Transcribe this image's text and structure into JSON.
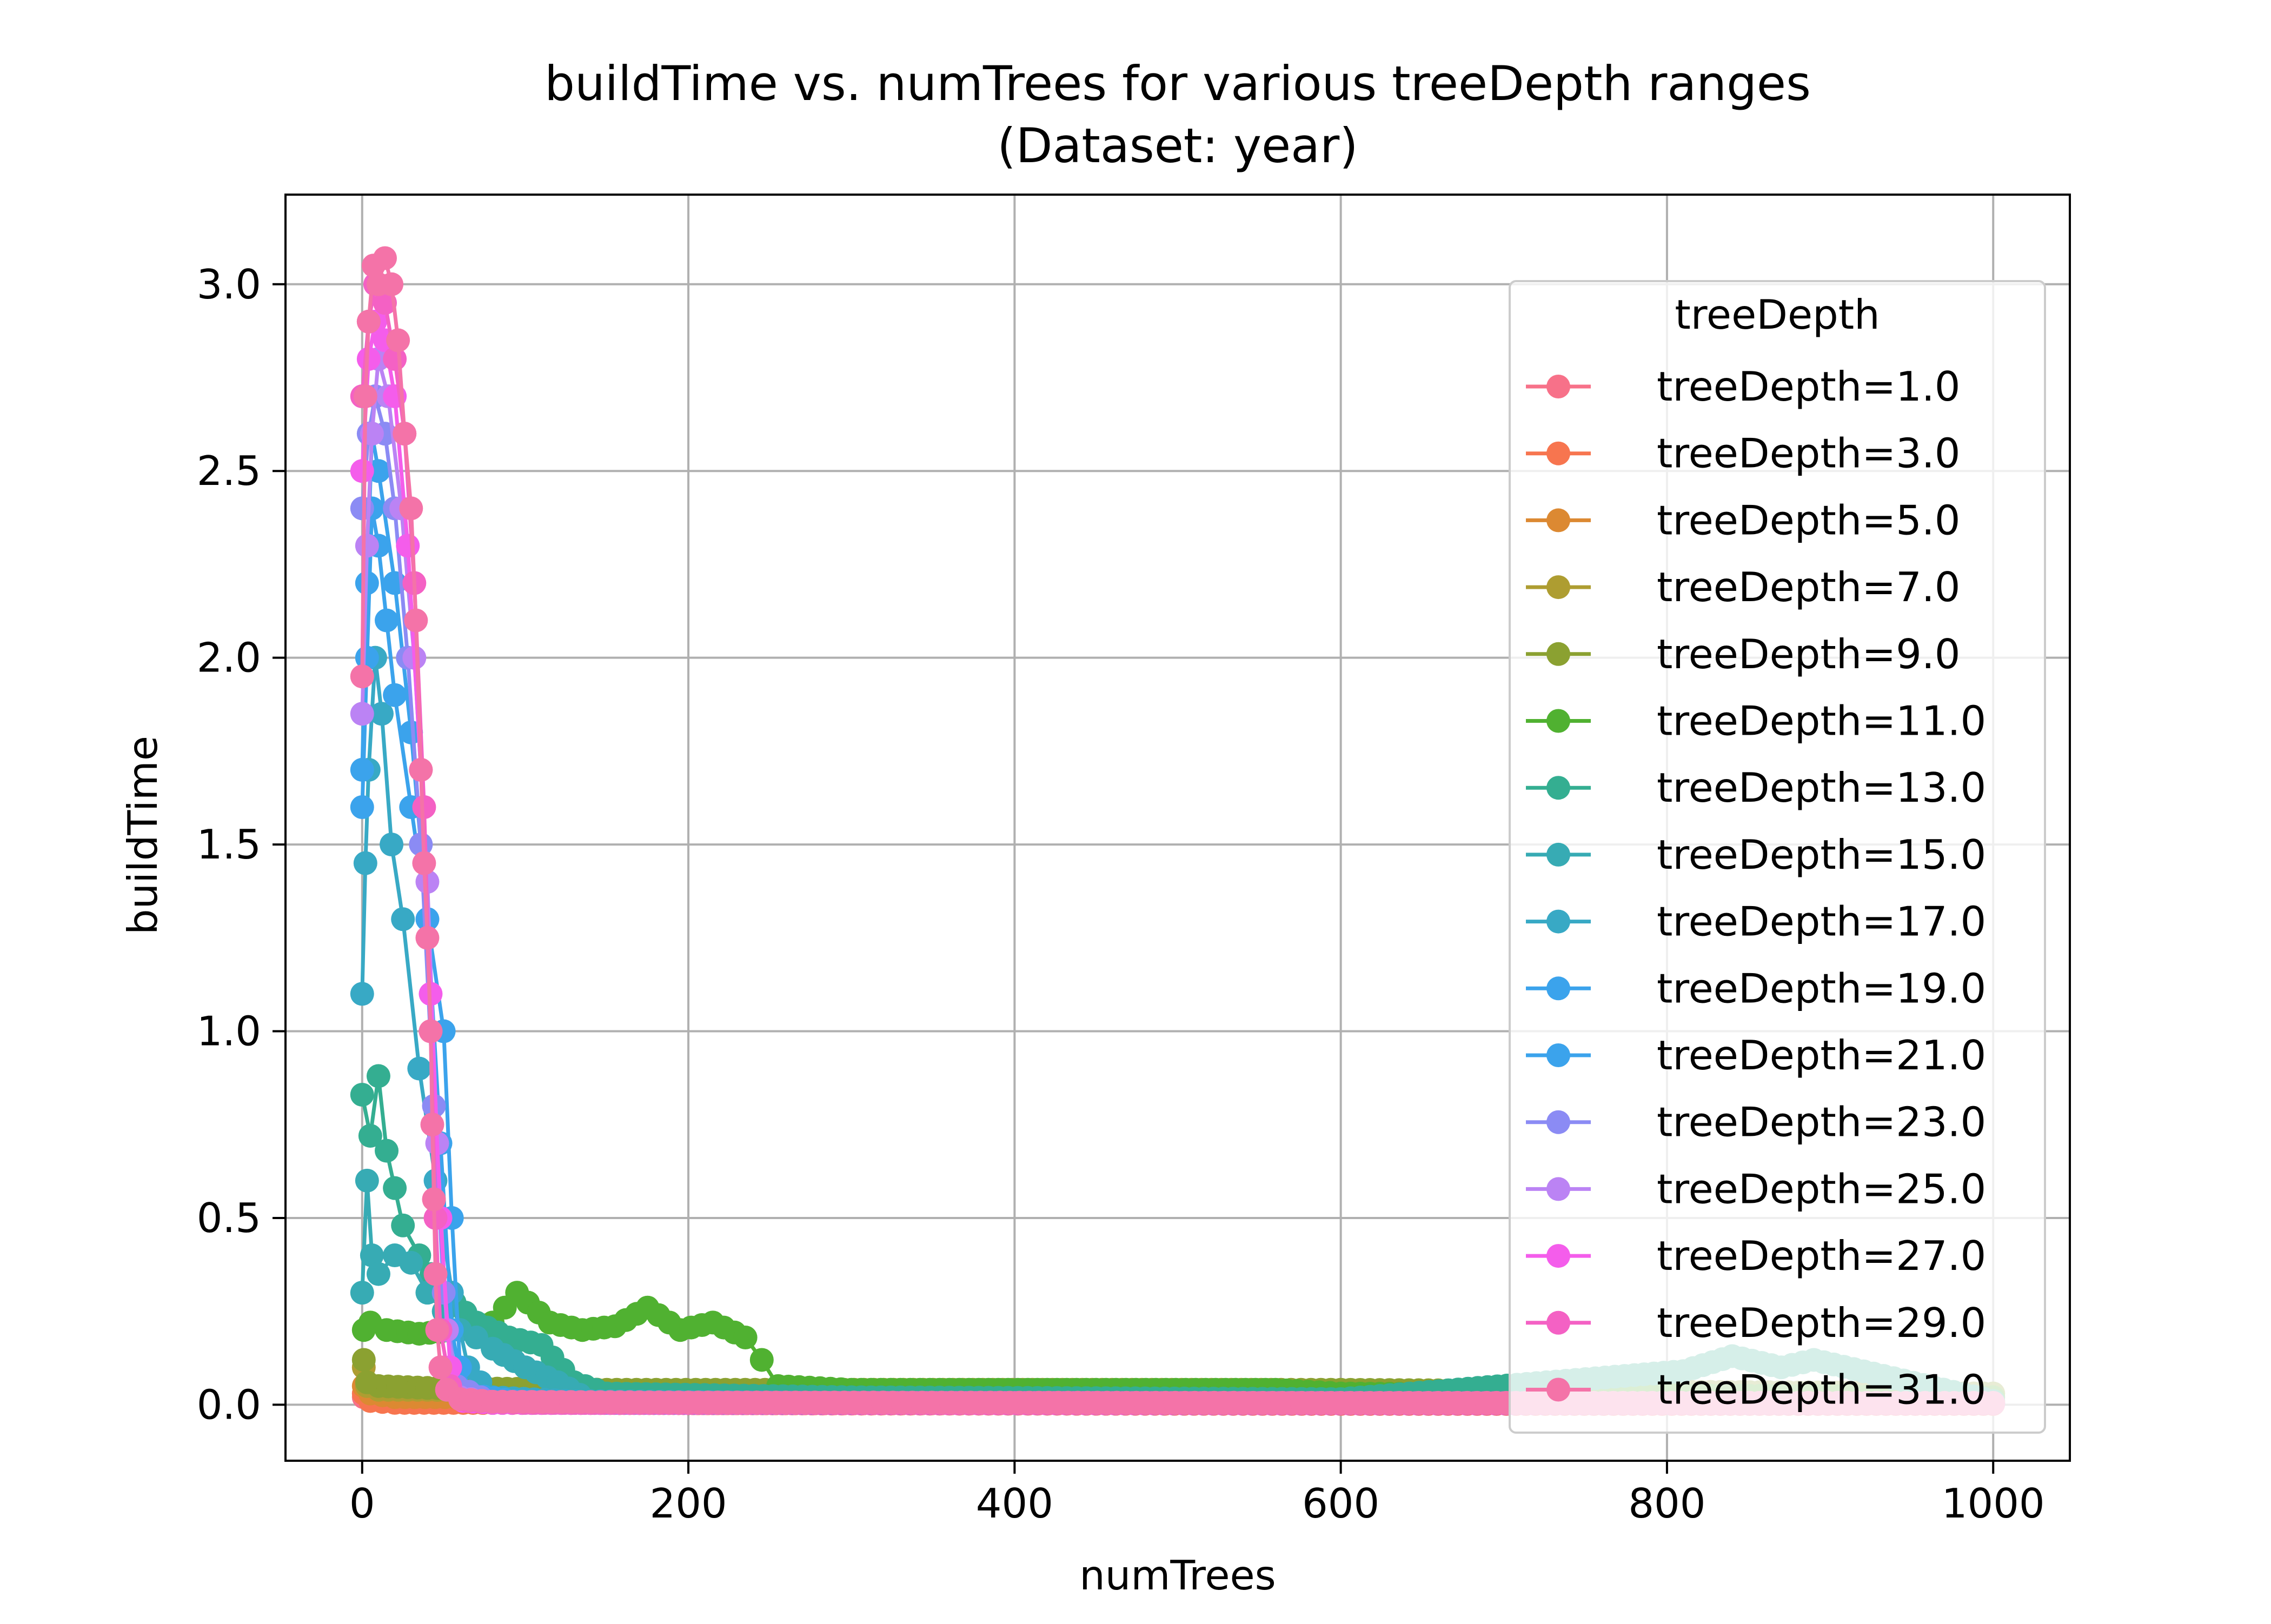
{
  "chart_data": {
    "type": "line",
    "title": "buildTime vs. numTrees for various treeDepth ranges",
    "subtitle": "(Dataset: year)",
    "xlabel": "numTrees",
    "ylabel": "buildTime",
    "xlim": [
      -47,
      1047
    ],
    "ylim": [
      -0.15,
      3.24
    ],
    "xticks": [
      0,
      200,
      400,
      600,
      800,
      1000
    ],
    "xtick_labels": [
      "0",
      "200",
      "400",
      "600",
      "800",
      "1000"
    ],
    "yticks": [
      0.0,
      0.5,
      1.0,
      1.5,
      2.0,
      2.5,
      3.0
    ],
    "ytick_labels": [
      "0.0",
      "0.5",
      "1.0",
      "1.5",
      "2.0",
      "2.5",
      "3.0"
    ],
    "grid": true,
    "legend": {
      "title": "treeDepth",
      "placement": "upper right"
    },
    "series": [
      {
        "name": "treeDepth=1.0",
        "color": "#f77189",
        "points": [
          [
            1,
            0.02
          ],
          [
            100,
            0.005
          ],
          [
            300,
            0.003
          ],
          [
            600,
            0.002
          ],
          [
            1000,
            0.002
          ]
        ]
      },
      {
        "name": "treeDepth=3.0",
        "color": "#f7754f",
        "points": [
          [
            1,
            0.03
          ],
          [
            5,
            0.01
          ],
          [
            20,
            0.005
          ],
          [
            200,
            0.004
          ],
          [
            600,
            0.003
          ],
          [
            1000,
            0.003
          ]
        ]
      },
      {
        "name": "treeDepth=5.0",
        "color": "#dc8932",
        "points": [
          [
            1,
            0.05
          ],
          [
            5,
            0.03
          ],
          [
            20,
            0.02
          ],
          [
            100,
            0.02
          ],
          [
            300,
            0.015
          ],
          [
            600,
            0.01
          ],
          [
            1000,
            0.01
          ]
        ]
      },
      {
        "name": "treeDepth=7.0",
        "color": "#ae9d31",
        "points": [
          [
            1,
            0.1
          ],
          [
            3,
            0.05
          ],
          [
            10,
            0.04
          ],
          [
            40,
            0.04
          ],
          [
            100,
            0.035
          ],
          [
            300,
            0.03
          ],
          [
            600,
            0.03
          ],
          [
            1000,
            0.03
          ]
        ]
      },
      {
        "name": "treeDepth=9.0",
        "color": "#8ba131",
        "points": [
          [
            1,
            0.12
          ],
          [
            3,
            0.06
          ],
          [
            10,
            0.05
          ],
          [
            40,
            0.045
          ],
          [
            150,
            0.04
          ],
          [
            350,
            0.04
          ],
          [
            600,
            0.04
          ],
          [
            1000,
            0.03
          ]
        ]
      },
      {
        "name": "treeDepth=11.0",
        "color": "#50b131",
        "points": [
          [
            1,
            0.2
          ],
          [
            5,
            0.22
          ],
          [
            15,
            0.2
          ],
          [
            35,
            0.19
          ],
          [
            60,
            0.2
          ],
          [
            80,
            0.22
          ],
          [
            95,
            0.3
          ],
          [
            115,
            0.22
          ],
          [
            135,
            0.2
          ],
          [
            155,
            0.21
          ],
          [
            175,
            0.26
          ],
          [
            195,
            0.2
          ],
          [
            215,
            0.22
          ],
          [
            235,
            0.18
          ],
          [
            245,
            0.12
          ],
          [
            255,
            0.05
          ],
          [
            300,
            0.04
          ],
          [
            450,
            0.04
          ],
          [
            560,
            0.04
          ],
          [
            600,
            0.03
          ],
          [
            1000,
            0.02
          ]
        ]
      },
      {
        "name": "treeDepth=13.0",
        "color": "#34ae91",
        "points": [
          [
            0,
            0.83
          ],
          [
            5,
            0.72
          ],
          [
            10,
            0.88
          ],
          [
            15,
            0.68
          ],
          [
            20,
            0.58
          ],
          [
            25,
            0.48
          ],
          [
            35,
            0.4
          ],
          [
            50,
            0.3
          ],
          [
            70,
            0.22
          ],
          [
            90,
            0.18
          ],
          [
            110,
            0.16
          ],
          [
            130,
            0.06
          ],
          [
            150,
            0.03
          ],
          [
            300,
            0.02
          ],
          [
            600,
            0.015
          ],
          [
            810,
            0.09
          ],
          [
            840,
            0.13
          ],
          [
            870,
            0.1
          ],
          [
            890,
            0.12
          ],
          [
            1000,
            0.01
          ]
        ]
      },
      {
        "name": "treeDepth=15.0",
        "color": "#37abb4",
        "points": [
          [
            0,
            0.3
          ],
          [
            3,
            0.6
          ],
          [
            6,
            0.4
          ],
          [
            10,
            0.35
          ],
          [
            20,
            0.4
          ],
          [
            30,
            0.38
          ],
          [
            40,
            0.3
          ],
          [
            50,
            0.25
          ],
          [
            60,
            0.2
          ],
          [
            70,
            0.18
          ],
          [
            80,
            0.15
          ],
          [
            100,
            0.1
          ],
          [
            120,
            0.06
          ],
          [
            140,
            0.01
          ],
          [
            300,
            0.005
          ],
          [
            1000,
            0.004
          ]
        ]
      },
      {
        "name": "treeDepth=17.0",
        "color": "#38a9c5",
        "points": [
          [
            0,
            1.1
          ],
          [
            2,
            1.45
          ],
          [
            4,
            1.7
          ],
          [
            8,
            2.0
          ],
          [
            12,
            1.85
          ],
          [
            18,
            1.5
          ],
          [
            25,
            1.3
          ],
          [
            35,
            0.9
          ],
          [
            45,
            0.6
          ],
          [
            55,
            0.3
          ],
          [
            65,
            0.1
          ],
          [
            80,
            0.02
          ],
          [
            150,
            0.005
          ],
          [
            1000,
            0.004
          ]
        ]
      },
      {
        "name": "treeDepth=19.0",
        "color": "#3ba3ec",
        "points": [
          [
            0,
            1.6
          ],
          [
            3,
            2.0
          ],
          [
            6,
            2.4
          ],
          [
            10,
            2.3
          ],
          [
            15,
            2.1
          ],
          [
            20,
            1.9
          ],
          [
            30,
            1.6
          ],
          [
            40,
            1.3
          ],
          [
            50,
            1.0
          ],
          [
            55,
            0.5
          ],
          [
            60,
            0.1
          ],
          [
            70,
            0.01
          ],
          [
            150,
            0.005
          ],
          [
            1000,
            0.004
          ]
        ]
      },
      {
        "name": "treeDepth=21.0",
        "color": "#3ba3ec",
        "points": [
          [
            0,
            1.7
          ],
          [
            3,
            2.2
          ],
          [
            6,
            2.6
          ],
          [
            10,
            2.5
          ],
          [
            20,
            2.2
          ],
          [
            30,
            1.8
          ],
          [
            40,
            1.3
          ],
          [
            48,
            0.7
          ],
          [
            55,
            0.2
          ],
          [
            62,
            0.03
          ],
          [
            100,
            0.005
          ],
          [
            1000,
            0.004
          ]
        ]
      },
      {
        "name": "treeDepth=23.0",
        "color": "#8b8bf4",
        "points": [
          [
            0,
            2.4
          ],
          [
            4,
            2.6
          ],
          [
            8,
            2.7
          ],
          [
            14,
            2.6
          ],
          [
            20,
            2.4
          ],
          [
            28,
            2.0
          ],
          [
            36,
            1.5
          ],
          [
            44,
            0.8
          ],
          [
            50,
            0.3
          ],
          [
            58,
            0.05
          ],
          [
            80,
            0.005
          ],
          [
            1000,
            0.004
          ]
        ]
      },
      {
        "name": "treeDepth=25.0",
        "color": "#bb83f4",
        "points": [
          [
            0,
            1.85
          ],
          [
            3,
            2.3
          ],
          [
            6,
            2.6
          ],
          [
            10,
            2.8
          ],
          [
            16,
            2.7
          ],
          [
            24,
            2.4
          ],
          [
            32,
            2.0
          ],
          [
            40,
            1.4
          ],
          [
            46,
            0.7
          ],
          [
            52,
            0.2
          ],
          [
            60,
            0.02
          ],
          [
            80,
            0.005
          ],
          [
            1000,
            0.004
          ]
        ]
      },
      {
        "name": "treeDepth=27.0",
        "color": "#f45deb",
        "points": [
          [
            0,
            2.5
          ],
          [
            4,
            2.8
          ],
          [
            8,
            2.9
          ],
          [
            14,
            2.85
          ],
          [
            20,
            2.7
          ],
          [
            28,
            2.3
          ],
          [
            36,
            1.7
          ],
          [
            42,
            1.1
          ],
          [
            48,
            0.5
          ],
          [
            54,
            0.1
          ],
          [
            62,
            0.01
          ],
          [
            80,
            0.005
          ],
          [
            1000,
            0.004
          ]
        ]
      },
      {
        "name": "treeDepth=29.0",
        "color": "#f461c4",
        "points": [
          [
            0,
            2.7
          ],
          [
            4,
            2.9
          ],
          [
            8,
            3.0
          ],
          [
            14,
            2.95
          ],
          [
            20,
            2.8
          ],
          [
            26,
            2.6
          ],
          [
            32,
            2.2
          ],
          [
            38,
            1.6
          ],
          [
            42,
            1.0
          ],
          [
            45,
            0.5
          ],
          [
            48,
            0.2
          ],
          [
            54,
            0.05
          ],
          [
            65,
            0.01
          ],
          [
            100,
            0.005
          ],
          [
            1000,
            0.004
          ]
        ]
      },
      {
        "name": "treeDepth=31.0",
        "color": "#f473a8",
        "points": [
          [
            0,
            1.95
          ],
          [
            2,
            2.7
          ],
          [
            4,
            2.9
          ],
          [
            7,
            3.05
          ],
          [
            10,
            3.0
          ],
          [
            14,
            3.07
          ],
          [
            18,
            3.0
          ],
          [
            22,
            2.85
          ],
          [
            26,
            2.6
          ],
          [
            30,
            2.4
          ],
          [
            33,
            2.1
          ],
          [
            36,
            1.7
          ],
          [
            38,
            1.45
          ],
          [
            40,
            1.25
          ],
          [
            42,
            1.0
          ],
          [
            43,
            0.75
          ],
          [
            44,
            0.55
          ],
          [
            45,
            0.35
          ],
          [
            46,
            0.2
          ],
          [
            48,
            0.1
          ],
          [
            52,
            0.04
          ],
          [
            60,
            0.015
          ],
          [
            80,
            0.008
          ],
          [
            200,
            0.006
          ],
          [
            600,
            0.005
          ],
          [
            1000,
            0.005
          ]
        ]
      }
    ]
  }
}
